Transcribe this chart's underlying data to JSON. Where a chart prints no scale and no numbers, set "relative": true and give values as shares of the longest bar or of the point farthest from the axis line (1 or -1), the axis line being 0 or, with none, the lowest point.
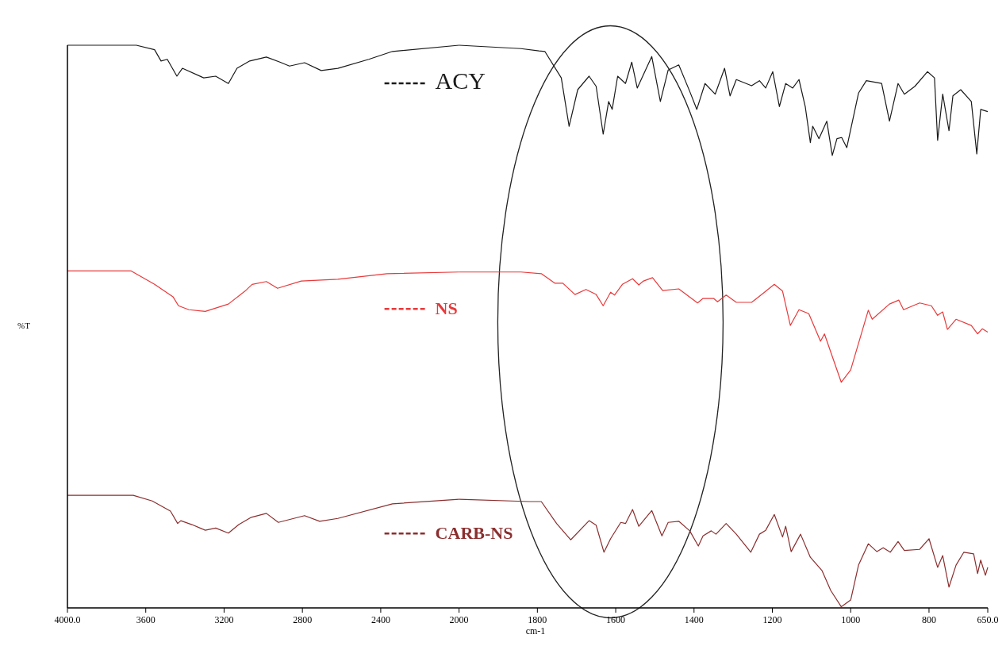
{
  "chart_data": [
    {
      "type": "line",
      "ylabel": "%T",
      "relative": true,
      "tick_labels": "x",
      "xlim": [
        4000,
        2000
      ],
      "xticks": [
        {
          "value": 4000,
          "label": "4000.0"
        },
        3600,
        3200,
        2800,
        2400,
        2000
      ],
      "legend": "right",
      "line_style": "solid",
      "series": [
        {
          "name": "ACY",
          "color": "#1a1a1a",
          "x": [
            4000,
            3648,
            3555,
            3522,
            3490,
            3441,
            3413,
            3304,
            3243,
            3178,
            3134,
            3069,
            2984,
            2915,
            2866,
            2789,
            2704,
            2619,
            2461,
            2340,
            2000
          ],
          "values": [
            1.0,
            1.0,
            0.992,
            0.972,
            0.975,
            0.945,
            0.959,
            0.942,
            0.945,
            0.932,
            0.959,
            0.972,
            0.979,
            0.97,
            0.963,
            0.969,
            0.955,
            0.959,
            0.975,
            0.989,
            1.0
          ]
        },
        {
          "name": "NS",
          "color": "#e8393a",
          "x": [
            4000,
            3676,
            3555,
            3461,
            3433,
            3380,
            3296,
            3178,
            3093,
            3057,
            2984,
            2927,
            2806,
            2619,
            2368,
            2000
          ],
          "values": [
            0.599,
            0.599,
            0.575,
            0.553,
            0.537,
            0.53,
            0.527,
            0.54,
            0.563,
            0.575,
            0.58,
            0.568,
            0.581,
            0.584,
            0.594,
            0.597
          ]
        },
        {
          "name": "CARB-NS",
          "color": "#8b2e2e",
          "x": [
            4000,
            3664,
            3567,
            3474,
            3437,
            3421,
            3364,
            3296,
            3243,
            3178,
            3125,
            3061,
            2984,
            2923,
            2789,
            2712,
            2619,
            2340,
            2000
          ],
          "values": [
            0.2,
            0.2,
            0.19,
            0.172,
            0.15,
            0.155,
            0.148,
            0.138,
            0.142,
            0.133,
            0.148,
            0.161,
            0.168,
            0.152,
            0.164,
            0.154,
            0.159,
            0.185,
            0.193
          ]
        }
      ]
    },
    {
      "type": "line",
      "xlabel": "cm-1",
      "relative": true,
      "tick_labels": "x",
      "xlim": [
        2000,
        650
      ],
      "xticks": [
        1800,
        1600,
        1400,
        1200,
        1000,
        800,
        {
          "value": 650,
          "label": "650.0"
        }
      ],
      "line_style": "solid",
      "series": [
        {
          "color": "#1a1a1a",
          "x": [
            2000,
            1842,
            1796,
            1781,
            1739,
            1719,
            1697,
            1668,
            1650,
            1632,
            1618,
            1609,
            1595,
            1575,
            1559,
            1545,
            1508,
            1486,
            1466,
            1439,
            1411,
            1393,
            1372,
            1346,
            1322,
            1308,
            1292,
            1253,
            1233,
            1217,
            1199,
            1182,
            1166,
            1148,
            1132,
            1116,
            1103,
            1097,
            1081,
            1061,
            1047,
            1035,
            1023,
            1010,
            980,
            960,
            921,
            901,
            879,
            863,
            836,
            804,
            786,
            778,
            765,
            749,
            739,
            719,
            692,
            678,
            668,
            650
          ],
          "values": [
            1.0,
            0.994,
            0.99,
            0.989,
            0.942,
            0.856,
            0.921,
            0.945,
            0.927,
            0.842,
            0.9,
            0.886,
            0.945,
            0.932,
            0.97,
            0.924,
            0.98,
            0.9,
            0.956,
            0.965,
            0.918,
            0.886,
            0.932,
            0.913,
            0.959,
            0.91,
            0.939,
            0.928,
            0.937,
            0.924,
            0.953,
            0.891,
            0.932,
            0.924,
            0.939,
            0.891,
            0.827,
            0.856,
            0.834,
            0.865,
            0.804,
            0.834,
            0.836,
            0.818,
            0.915,
            0.937,
            0.932,
            0.865,
            0.932,
            0.913,
            0.927,
            0.953,
            0.942,
            0.831,
            0.913,
            0.848,
            0.91,
            0.921,
            0.9,
            0.807,
            0.886,
            0.882
          ]
        },
        {
          "color": "#e8393a",
          "x": [
            2000,
            1842,
            1790,
            1755,
            1735,
            1704,
            1676,
            1650,
            1632,
            1613,
            1603,
            1583,
            1557,
            1541,
            1529,
            1506,
            1480,
            1439,
            1391,
            1377,
            1350,
            1340,
            1318,
            1292,
            1253,
            1229,
            1195,
            1174,
            1154,
            1132,
            1107,
            1077,
            1067,
            1024,
            1000,
            955,
            945,
            901,
            877,
            865,
            824,
            794,
            778,
            765,
            753,
            731,
            692,
            676,
            664,
            650
          ],
          "values": [
            0.597,
            0.597,
            0.594,
            0.577,
            0.577,
            0.557,
            0.566,
            0.557,
            0.537,
            0.561,
            0.556,
            0.575,
            0.585,
            0.574,
            0.581,
            0.587,
            0.564,
            0.567,
            0.542,
            0.55,
            0.55,
            0.544,
            0.556,
            0.543,
            0.543,
            0.556,
            0.575,
            0.563,
            0.502,
            0.53,
            0.523,
            0.474,
            0.487,
            0.401,
            0.423,
            0.529,
            0.513,
            0.54,
            0.547,
            0.53,
            0.542,
            0.537,
            0.52,
            0.526,
            0.495,
            0.513,
            0.502,
            0.487,
            0.496,
            0.49
          ]
        },
        {
          "color": "#8b2e2e",
          "x": [
            2000,
            1820,
            1790,
            1751,
            1715,
            1668,
            1650,
            1630,
            1613,
            1587,
            1575,
            1557,
            1541,
            1508,
            1482,
            1466,
            1439,
            1411,
            1389,
            1377,
            1356,
            1344,
            1318,
            1292,
            1255,
            1233,
            1217,
            1195,
            1174,
            1166,
            1152,
            1128,
            1103,
            1073,
            1051,
            1024,
            1000,
            980,
            955,
            933,
            917,
            899,
            879,
            863,
            824,
            800,
            778,
            765,
            749,
            731,
            711,
            686,
            676,
            668,
            656,
            650
          ],
          "values": [
            0.193,
            0.189,
            0.189,
            0.15,
            0.121,
            0.155,
            0.147,
            0.099,
            0.123,
            0.152,
            0.15,
            0.175,
            0.145,
            0.173,
            0.128,
            0.152,
            0.154,
            0.137,
            0.11,
            0.128,
            0.137,
            0.131,
            0.15,
            0.131,
            0.099,
            0.131,
            0.138,
            0.166,
            0.126,
            0.145,
            0.1,
            0.131,
            0.09,
            0.066,
            0.031,
            0.002,
            0.014,
            0.076,
            0.114,
            0.1,
            0.107,
            0.099,
            0.118,
            0.102,
            0.104,
            0.123,
            0.072,
            0.093,
            0.037,
            0.076,
            0.099,
            0.096,
            0.061,
            0.085,
            0.058,
            0.072
          ]
        }
      ]
    }
  ]
}
